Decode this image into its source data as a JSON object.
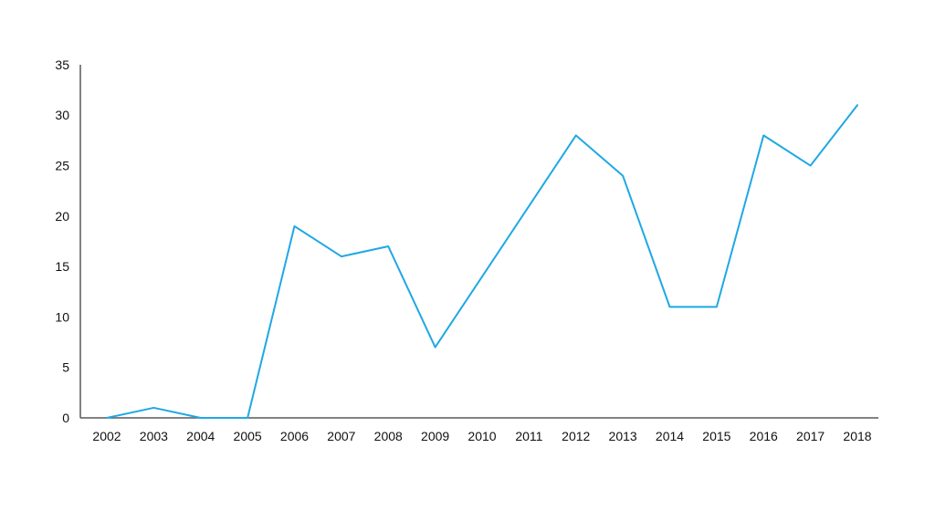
{
  "chart_data": {
    "type": "line",
    "title": "",
    "xlabel": "",
    "ylabel": "",
    "categories": [
      "2002",
      "2003",
      "2004",
      "2005",
      "2006",
      "2007",
      "2008",
      "2009",
      "2010",
      "2011",
      "2012",
      "2013",
      "2014",
      "2015",
      "2016",
      "2017",
      "2018"
    ],
    "values": [
      0,
      1,
      0,
      0,
      19,
      16,
      17,
      7,
      14,
      21,
      28,
      24,
      11,
      11,
      28,
      25,
      31
    ],
    "ylim": [
      0,
      35
    ],
    "yticks": [
      0,
      5,
      10,
      15,
      20,
      25,
      30,
      35
    ],
    "grid": false,
    "legend": "none",
    "markers": false,
    "line_color": "#1FA8E4",
    "axis_color": "#595959",
    "label_color": "#111111"
  }
}
